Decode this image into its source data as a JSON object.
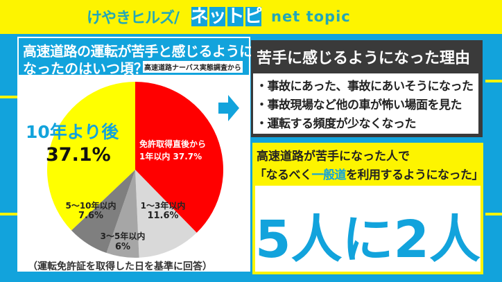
{
  "header": {
    "brand_jp": "けやきヒルズ/",
    "brand_box": [
      "ネ",
      "ッ",
      "ト",
      "ピ"
    ],
    "brand_en": "net topic"
  },
  "left_panel": {
    "title_line1": "高速道路の運転が苦手と感じるように",
    "title_line2": "なったのはいつ頃？",
    "source": "高速道路ナーバス実態調査から",
    "note": "（運転免許証を取得した日を基準に回答）"
  },
  "chart_data": {
    "type": "pie",
    "title": "高速道路の運転が苦手と感じるようになったのはいつ頃？",
    "start_angle": "12 o'clock, clockwise",
    "categories": [
      "免許取得直後から1年以内",
      "1〜3年以内",
      "3〜5年以内",
      "5〜10年以内",
      "10年より後"
    ],
    "values": [
      37.7,
      11.6,
      6,
      7.6,
      37.1
    ],
    "unit": "%",
    "colors": [
      "#ff0000",
      "#d9d9d9",
      "#a6a6a6",
      "#7f7f7f",
      "#ffff00"
    ],
    "labels": [
      {
        "line1": "免許取得直後から",
        "line2": "1年以内  37.7%"
      },
      {
        "line1": "1〜3年以内",
        "line2": "11.6%"
      },
      {
        "line1": "3〜5年以内",
        "line2": "6%"
      },
      {
        "line1": "5〜10年以内",
        "line2": "7.6%"
      },
      {
        "line1": "10年より後",
        "line2": "37.1%"
      }
    ],
    "note": "（運転免許証を取得した日を基準に回答）"
  },
  "reasons": {
    "heading": "苦手に感じるようになった理由",
    "items": [
      "・事故にあった、事故にあいそうになった",
      "・事故現場など他の車が怖い場面を見た",
      "・運転する頻度が少なくなった"
    ]
  },
  "result": {
    "line1": "高速道路が苦手になった人で",
    "line2_pre": "「なるべく",
    "line2_hl": "一般道",
    "line2_post": "を利用するようになった」",
    "big": "5人に2人"
  },
  "colors": {
    "brand_blue": "#12a3dc",
    "brand_yellow": "#fdf400",
    "dark_header": "#3a3a3a"
  }
}
